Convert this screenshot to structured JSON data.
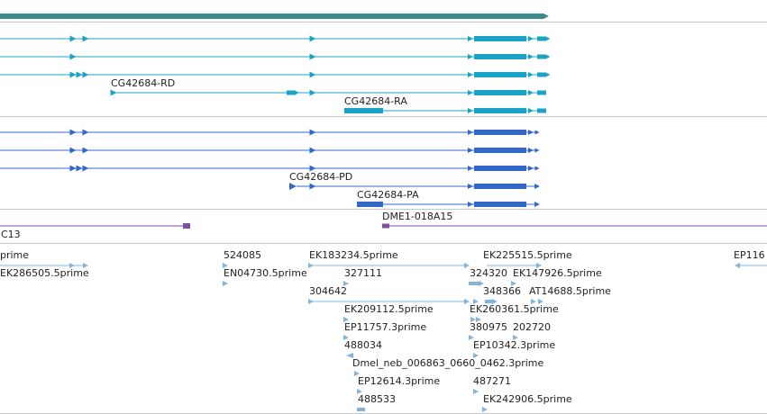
{
  "colors": {
    "gene_span": "#3a8c8a",
    "transcript_cyan": "#1ba3c6",
    "transcript_blue": "#3468c8",
    "clone": "#7f4fa8",
    "est": "#82b4dc",
    "separator": "#c8c8c8",
    "label": "#222222"
  },
  "labels": {
    "transcript_cyan_rd": "CG42684-RD",
    "transcript_cyan_ra": "CG42684-RA",
    "transcript_blue_pd": "CG42684-PD",
    "transcript_blue_pa": "CG42684-PA",
    "clone_dme1": "DME1-018A15",
    "clone_c13": "C13"
  },
  "est_labels": [
    "prime",
    "EK286505.5prime",
    "524085",
    "EN04730.5prime",
    "EK183234.5prime",
    "327111",
    "304642",
    "EK225515.5prime",
    "324320",
    "EK147926.5prime",
    "348366",
    "AT14688.5prime",
    "EK209112.5prime",
    "EK260361.5prime",
    "EP11757.3prime",
    "380975",
    "202720",
    "488034",
    "EP10342.3prime",
    "Dmel_neb_006863_0660_0462.3prime",
    "EP12614.3prime",
    "487271",
    "488533",
    "EK242906.5prime",
    "EP116"
  ]
}
